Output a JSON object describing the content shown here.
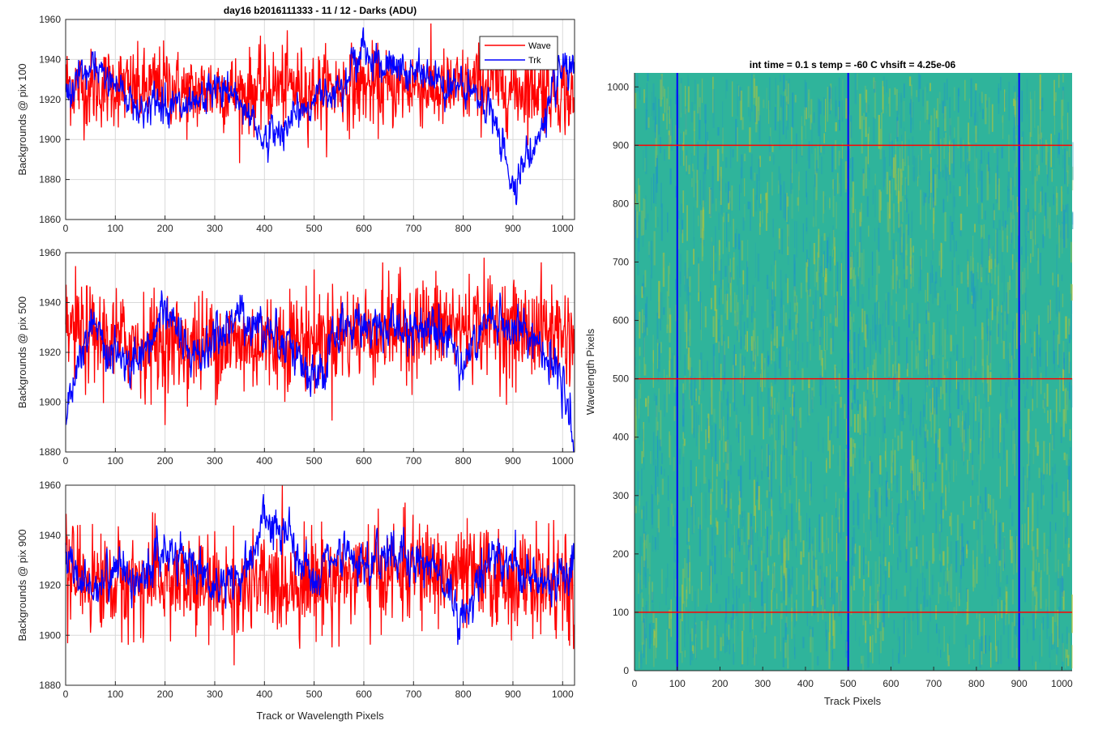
{
  "figure": {
    "left_title": "day16 b2016111333 - 11 / 12 - Darks (ADU)",
    "left_xlabel": "Track or Wavelength Pixels",
    "right_title": "int time = 0.1 s   temp = -60 C   vhsift = 4.25e-06",
    "right_xlabel": "Track Pixels",
    "right_ylabel": "Wavelength Pixels"
  },
  "colors": {
    "wave": "#ff0000",
    "trk": "#0000ff",
    "heat_low": "#1e95c8",
    "heat_mid": "#2fb49b",
    "heat_high": "#b5c43a"
  },
  "legend": {
    "entries": [
      "Wave",
      "Trk"
    ],
    "location": "top-right of top panel"
  },
  "chart_data": [
    {
      "type": "line",
      "ylabel": "Backgrounds @ pix 100",
      "xlim": [
        0,
        1024
      ],
      "ylim": [
        1860,
        1960
      ],
      "xticks": [
        "0",
        "100",
        "200",
        "300",
        "400",
        "500",
        "600",
        "700",
        "800",
        "900",
        "1000"
      ],
      "yticks": [
        "1860",
        "1880",
        "1900",
        "1920",
        "1940",
        "1960"
      ],
      "grid": true,
      "series": [
        {
          "name": "Wave",
          "color": "#ff0000",
          "x": [
            0,
            50,
            100,
            150,
            200,
            250,
            300,
            350,
            400,
            450,
            500,
            550,
            600,
            650,
            700,
            750,
            800,
            850,
            900,
            950,
            1000,
            1024
          ],
          "values": [
            1928,
            1925,
            1927,
            1924,
            1928,
            1922,
            1926,
            1923,
            1925,
            1927,
            1924,
            1926,
            1927,
            1925,
            1928,
            1924,
            1926,
            1928,
            1925,
            1926,
            1924,
            1918
          ]
        },
        {
          "name": "Trk",
          "color": "#0000ff",
          "x": [
            0,
            50,
            100,
            150,
            200,
            250,
            300,
            350,
            400,
            450,
            500,
            550,
            600,
            650,
            700,
            750,
            800,
            850,
            900,
            950,
            1000,
            1024
          ],
          "values": [
            1922,
            1935,
            1928,
            1915,
            1920,
            1912,
            1926,
            1920,
            1900,
            1908,
            1920,
            1928,
            1945,
            1935,
            1933,
            1930,
            1924,
            1918,
            1878,
            1900,
            1935,
            1930
          ]
        }
      ]
    },
    {
      "type": "line",
      "ylabel": "Backgrounds @ pix 500",
      "xlim": [
        0,
        1024
      ],
      "ylim": [
        1880,
        1960
      ],
      "xticks": [
        "0",
        "100",
        "200",
        "300",
        "400",
        "500",
        "600",
        "700",
        "800",
        "900",
        "1000"
      ],
      "yticks": [
        "1880",
        "1900",
        "1920",
        "1940",
        "1960"
      ],
      "grid": true,
      "series": [
        {
          "name": "Wave",
          "color": "#ff0000",
          "x": [
            0,
            50,
            100,
            150,
            200,
            250,
            300,
            350,
            400,
            450,
            500,
            550,
            600,
            650,
            700,
            750,
            800,
            850,
            900,
            950,
            1000,
            1024
          ],
          "values": [
            1930,
            1926,
            1925,
            1923,
            1924,
            1922,
            1925,
            1923,
            1924,
            1926,
            1925,
            1927,
            1928,
            1929,
            1930,
            1931,
            1930,
            1932,
            1928,
            1929,
            1928,
            1925
          ]
        },
        {
          "name": "Trk",
          "color": "#0000ff",
          "x": [
            0,
            50,
            100,
            150,
            200,
            250,
            300,
            350,
            400,
            450,
            500,
            550,
            600,
            650,
            700,
            750,
            800,
            850,
            900,
            950,
            1000,
            1024
          ],
          "values": [
            1895,
            1930,
            1918,
            1912,
            1940,
            1915,
            1925,
            1935,
            1930,
            1925,
            1905,
            1928,
            1932,
            1930,
            1928,
            1934,
            1915,
            1932,
            1930,
            1925,
            1905,
            1885
          ]
        }
      ]
    },
    {
      "type": "line",
      "ylabel": "Backgrounds @ pix 900",
      "xlabel": "Track or Wavelength Pixels",
      "xlim": [
        0,
        1024
      ],
      "ylim": [
        1880,
        1960
      ],
      "xticks": [
        "0",
        "100",
        "200",
        "300",
        "400",
        "500",
        "600",
        "700",
        "800",
        "900",
        "1000"
      ],
      "yticks": [
        "1880",
        "1900",
        "1920",
        "1940",
        "1960"
      ],
      "grid": true,
      "series": [
        {
          "name": "Wave",
          "color": "#ff0000",
          "x": [
            0,
            50,
            100,
            150,
            200,
            250,
            300,
            350,
            400,
            450,
            500,
            550,
            600,
            650,
            700,
            750,
            800,
            850,
            900,
            950,
            1000,
            1024
          ],
          "values": [
            1925,
            1922,
            1920,
            1921,
            1922,
            1920,
            1919,
            1918,
            1920,
            1921,
            1922,
            1923,
            1924,
            1925,
            1926,
            1925,
            1924,
            1923,
            1922,
            1921,
            1920,
            1915
          ]
        },
        {
          "name": "Trk",
          "color": "#0000ff",
          "x": [
            0,
            50,
            100,
            150,
            200,
            250,
            300,
            350,
            400,
            450,
            500,
            550,
            600,
            650,
            700,
            750,
            800,
            850,
            900,
            950,
            1000,
            1024
          ],
          "values": [
            1930,
            1918,
            1928,
            1922,
            1935,
            1930,
            1920,
            1922,
            1945,
            1938,
            1920,
            1932,
            1925,
            1935,
            1930,
            1928,
            1905,
            1932,
            1930,
            1920,
            1925,
            1930
          ]
        }
      ]
    },
    {
      "type": "heatmap",
      "title": "int time = 0.1 s   temp = -60 C   vhsift = 4.25e-06",
      "xlabel": "Track Pixels",
      "ylabel": "Wavelength Pixels",
      "xlim": [
        0,
        1024
      ],
      "ylim": [
        0,
        1024
      ],
      "xticks": [
        "0",
        "100",
        "200",
        "300",
        "400",
        "500",
        "600",
        "700",
        "800",
        "900",
        "1000"
      ],
      "yticks": [
        "0",
        "100",
        "200",
        "300",
        "400",
        "500",
        "600",
        "700",
        "800",
        "900",
        "1000"
      ],
      "vertical_markers": [
        100,
        500,
        900
      ],
      "horizontal_markers": [
        100,
        500,
        900
      ],
      "vertical_marker_color": "#0000ff",
      "horizontal_marker_color": "#ff0000"
    }
  ]
}
